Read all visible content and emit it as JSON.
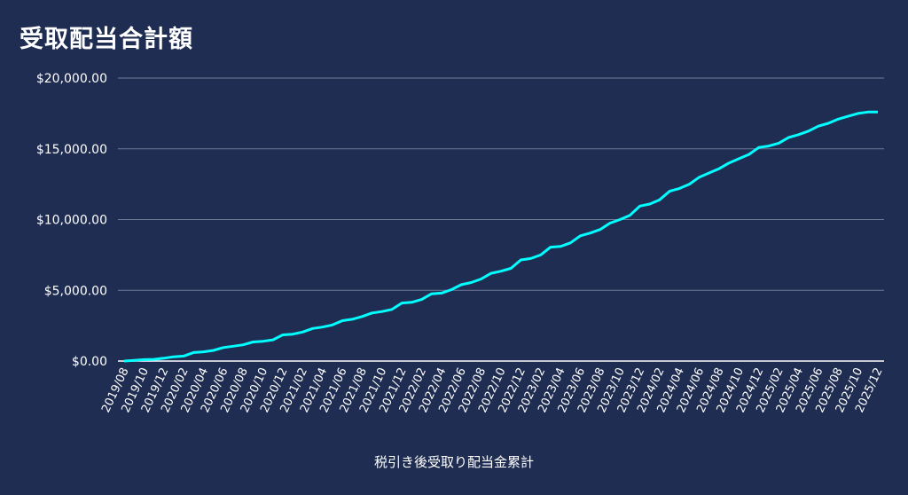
{
  "title": "受取配当合計額",
  "chart_data": {
    "type": "line",
    "title": "受取配当合計額",
    "ylim": [
      0,
      20000
    ],
    "yticks": [
      0,
      5000,
      10000,
      15000,
      20000
    ],
    "ytick_labels": [
      "$0.00",
      "$5,000.00",
      "$10,000.00",
      "$15,000.00",
      "$20,000.00"
    ],
    "grid": true,
    "legend": "bottom",
    "line_color": "#00ffff",
    "x": [
      "2019/08",
      "2019/09",
      "2019/10",
      "2019/11",
      "2019/12",
      "2020/01",
      "2020/02",
      "2020/03",
      "2020/04",
      "2020/05",
      "2020/06",
      "2020/07",
      "2020/08",
      "2020/09",
      "2020/10",
      "2020/11",
      "2020/12",
      "2021/01",
      "2021/02",
      "2021/03",
      "2021/04",
      "2021/05",
      "2021/06",
      "2021/07",
      "2021/08",
      "2021/09",
      "2021/10",
      "2021/11",
      "2021/12",
      "2022/01",
      "2022/02",
      "2022/03",
      "2022/04",
      "2022/05",
      "2022/06",
      "2022/07",
      "2022/08",
      "2022/09",
      "2022/10",
      "2022/11",
      "2022/12",
      "2023/01",
      "2023/02",
      "2023/03",
      "2023/04",
      "2023/05",
      "2023/06",
      "2023/07",
      "2023/08",
      "2023/09",
      "2023/10",
      "2023/11",
      "2023/12",
      "2024/01",
      "2024/02",
      "2024/03",
      "2024/04",
      "2024/05",
      "2024/06",
      "2024/07",
      "2024/08",
      "2024/09",
      "2024/10",
      "2024/11",
      "2024/12",
      "2025/01",
      "2025/02",
      "2025/03",
      "2025/04",
      "2025/05",
      "2025/06",
      "2025/07",
      "2025/08",
      "2025/09",
      "2025/10",
      "2025/11",
      "2025/12"
    ],
    "x_tick_labels": [
      "2019/08",
      "2019/10",
      "2019/12",
      "2020/02",
      "2020/04",
      "2020/06",
      "2020/08",
      "2020/10",
      "2020/12",
      "2021/02",
      "2021/04",
      "2021/06",
      "2021/08",
      "2021/10",
      "2021/12",
      "2022/02",
      "2022/04",
      "2022/06",
      "2022/08",
      "2022/10",
      "2022/12",
      "2023/02",
      "2023/04",
      "2023/06",
      "2023/08",
      "2023/10",
      "2023/12",
      "2024/02",
      "2024/04",
      "2024/06",
      "2024/08",
      "2024/10",
      "2024/12",
      "2025/02",
      "2025/04",
      "2025/06",
      "2025/08",
      "2025/10",
      "2025/12"
    ],
    "series": [
      {
        "name": "税引き後受取り配当金累計",
        "values": [
          0,
          50,
          100,
          120,
          200,
          300,
          350,
          600,
          650,
          750,
          950,
          1050,
          1150,
          1350,
          1400,
          1500,
          1850,
          1900,
          2050,
          2300,
          2400,
          2550,
          2850,
          2950,
          3150,
          3400,
          3500,
          3650,
          4100,
          4150,
          4350,
          4750,
          4800,
          5050,
          5400,
          5550,
          5800,
          6200,
          6350,
          6550,
          7150,
          7250,
          7500,
          8050,
          8100,
          8350,
          8850,
          9050,
          9300,
          9750,
          10000,
          10300,
          10950,
          11100,
          11400,
          12000,
          12200,
          12500,
          13000,
          13300,
          13600,
          14000,
          14300,
          14600,
          15100,
          15200,
          15400,
          15800,
          16000,
          16250,
          16600,
          16800,
          17100,
          17300,
          17500,
          17600,
          17600
        ]
      }
    ]
  }
}
